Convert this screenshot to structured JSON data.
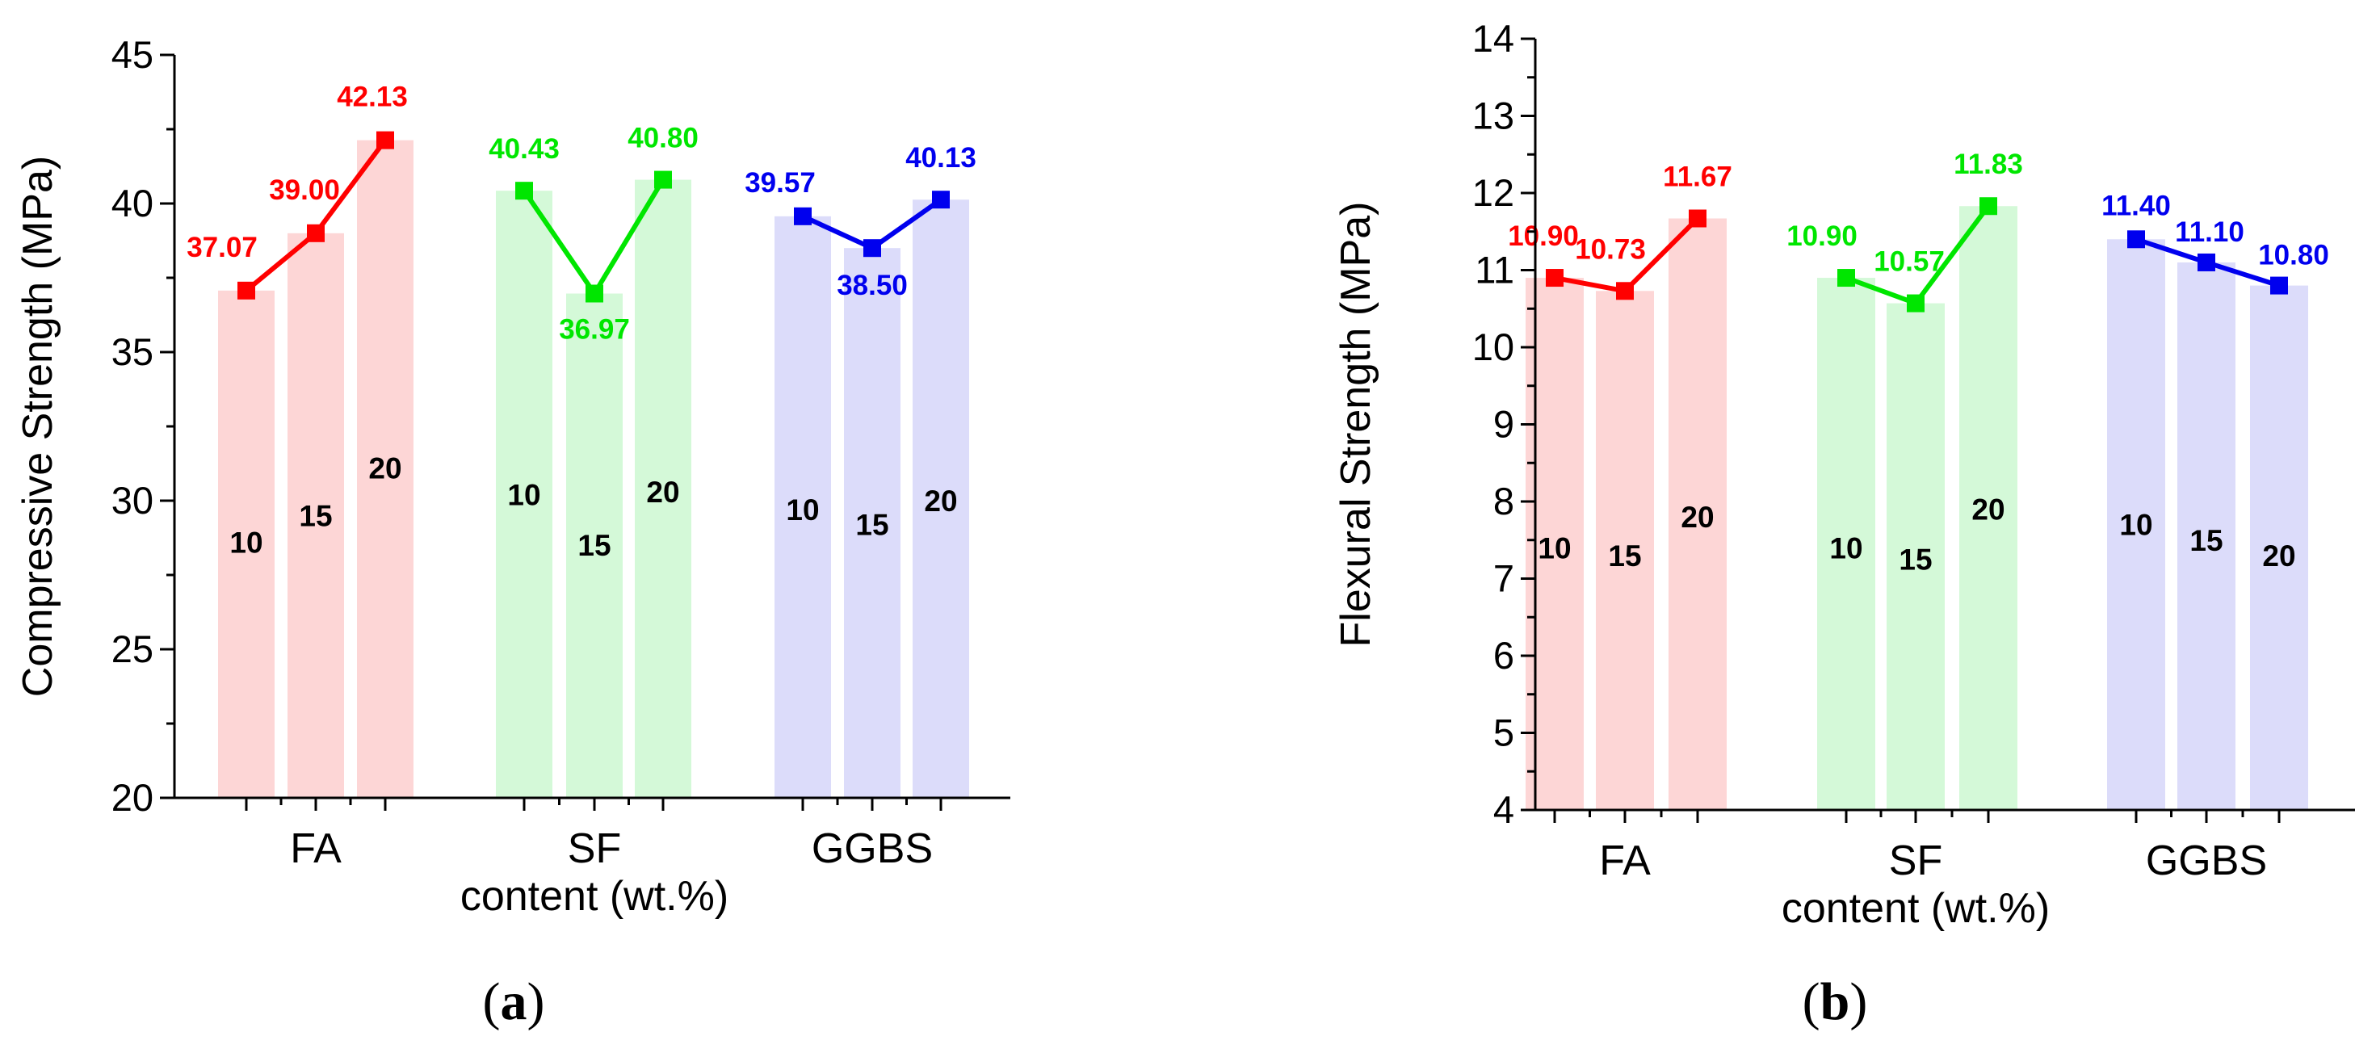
{
  "chart_data": [
    {
      "type": "bar",
      "panel": "(a)",
      "panel_letter": "a",
      "title": "",
      "ylabel": "Compressive Strength (MPa)",
      "xlabel": "content (wt.%)",
      "ylim": [
        20,
        45
      ],
      "yticks": [
        "20",
        "25",
        "30",
        "35",
        "40",
        "45"
      ],
      "categories": [
        "FA",
        "SF",
        "GGBS"
      ],
      "grid": false,
      "series": [
        {
          "name": "FA",
          "color": "#ff0000",
          "bar_color": "#fdd6d6",
          "contents": [
            "10",
            "15",
            "20"
          ],
          "values": [
            37.07,
            39.0,
            42.13
          ],
          "value_labels": [
            "37.07",
            "39.00",
            "42.13"
          ],
          "content_label_y": [
            28.6,
            29.5,
            31.1
          ]
        },
        {
          "name": "SF",
          "color": "#00e600",
          "bar_color": "#d4f9d8",
          "contents": [
            "10",
            "15",
            "20"
          ],
          "values": [
            40.43,
            36.97,
            40.8
          ],
          "value_labels": [
            "40.43",
            "36.97",
            "40.80"
          ],
          "content_label_y": [
            30.2,
            28.5,
            30.3
          ]
        },
        {
          "name": "GGBS",
          "color": "#0000ee",
          "bar_color": "#dcdcfa",
          "contents": [
            "10",
            "15",
            "20"
          ],
          "values": [
            39.57,
            38.5,
            40.13
          ],
          "value_labels": [
            "39.57",
            "38.50",
            "40.13"
          ],
          "content_label_y": [
            29.7,
            29.2,
            30.0
          ]
        }
      ]
    },
    {
      "type": "bar",
      "panel": "(b)",
      "panel_letter": "b",
      "title": "",
      "ylabel": "Flexural Strength (MPa)",
      "xlabel": "content (wt.%)",
      "ylim": [
        4,
        14
      ],
      "yticks": [
        "4",
        "5",
        "6",
        "7",
        "8",
        "9",
        "10",
        "11",
        "12",
        "13",
        "14"
      ],
      "categories": [
        "FA",
        "SF",
        "GGBS"
      ],
      "grid": false,
      "series": [
        {
          "name": "FA",
          "color": "#ff0000",
          "bar_color": "#fdd6d6",
          "contents": [
            "10",
            "15",
            "20"
          ],
          "values": [
            10.9,
            10.73,
            11.67
          ],
          "value_labels": [
            "10.90",
            "10.73",
            "11.67"
          ],
          "content_label_y": [
            7.4,
            7.3,
            7.8
          ]
        },
        {
          "name": "SF",
          "color": "#00e600",
          "bar_color": "#d4f9d8",
          "contents": [
            "10",
            "15",
            "20"
          ],
          "values": [
            10.9,
            10.57,
            11.83
          ],
          "value_labels": [
            "10.90",
            "10.57",
            "11.83"
          ],
          "content_label_y": [
            7.4,
            7.25,
            7.9
          ]
        },
        {
          "name": "GGBS",
          "color": "#0000ee",
          "bar_color": "#dcdcfa",
          "contents": [
            "10",
            "15",
            "20"
          ],
          "values": [
            11.4,
            11.1,
            10.8
          ],
          "value_labels": [
            "11.40",
            "11.10",
            "10.80"
          ],
          "content_label_y": [
            7.7,
            7.5,
            7.3
          ]
        }
      ]
    }
  ]
}
